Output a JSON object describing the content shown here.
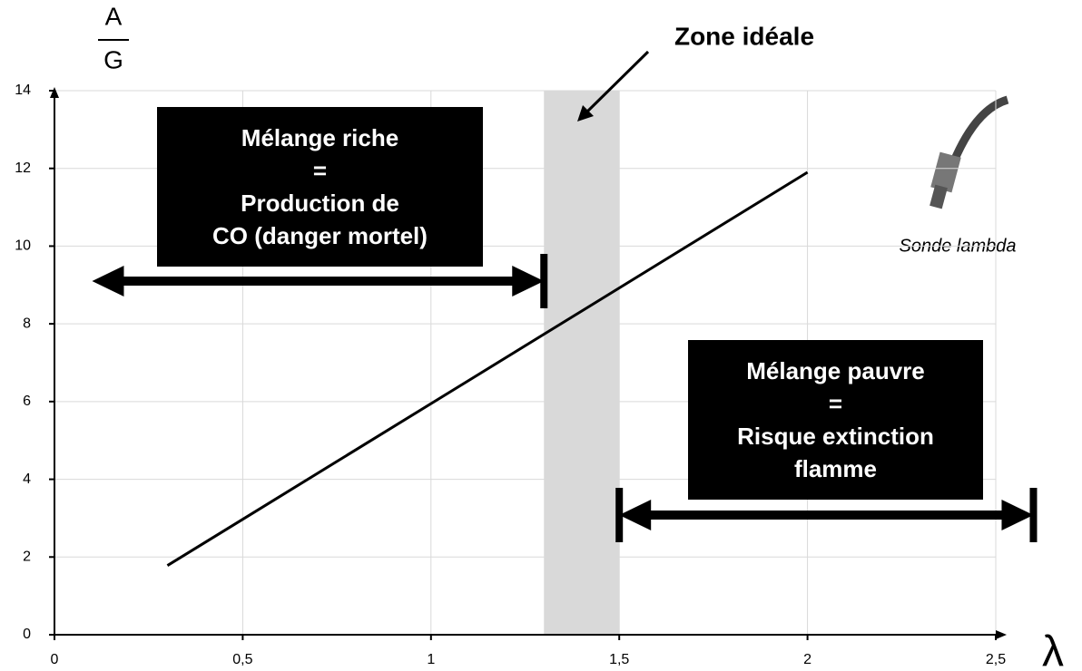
{
  "chart_data": {
    "type": "line",
    "y_label_top": "A",
    "y_label_bottom": "G",
    "x_label": "λ",
    "x": [
      0.3,
      2
    ],
    "values": [
      1.78,
      11.9
    ],
    "color": "#000000",
    "xlim": [
      0,
      2.5
    ],
    "ylim": [
      0,
      14
    ],
    "xticks": [
      0,
      {
        "value": 0.5,
        "label": "0,5"
      },
      1,
      {
        "value": 1.5,
        "label": "1,5"
      },
      2,
      {
        "value": 2.5,
        "label": "2,5"
      }
    ],
    "yticks": [
      0,
      2,
      4,
      6,
      8,
      10,
      12,
      14
    ],
    "grid": true,
    "ideal_zone": {
      "label": "Zone idéale",
      "x": [
        1.3,
        1.5
      ],
      "color": "#d9d9d9"
    },
    "rich": {
      "lines": [
        "Mélange riche",
        "=",
        "Production de",
        "CO (danger mortel)"
      ],
      "x": [
        0.1,
        1.3
      ]
    },
    "lean": {
      "lines": [
        "Mélange pauvre",
        "=",
        "Risque extinction",
        "flamme"
      ],
      "x": [
        1.5,
        2.6
      ]
    },
    "sensor_caption": "Sonde lambda"
  }
}
